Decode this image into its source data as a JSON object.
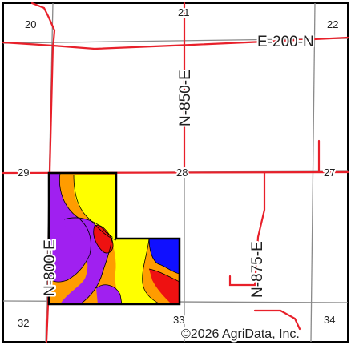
{
  "map": {
    "section_numbers": {
      "s20": "20",
      "s21": "21",
      "s22": "22",
      "s29": "29",
      "s28": "28",
      "s27": "27",
      "s32": "32",
      "s33": "33",
      "s34": "34"
    },
    "road_labels": {
      "road_e200n": "E-200-N",
      "road_n850e": "N-850-E",
      "road_n875e": "N-875-E",
      "road_n800e": "N-800-E"
    },
    "copyright": "©2026 AgriData, Inc.",
    "colors": {
      "road": "#e8202a",
      "section_line": "#8a8a8a",
      "field_outline": "#000000",
      "soil_orange": "#ff9c00",
      "soil_yellow": "#ffff00",
      "soil_purple": "#a020f0",
      "soil_red": "#ee1111",
      "soil_blue": "#1010ff"
    }
  }
}
